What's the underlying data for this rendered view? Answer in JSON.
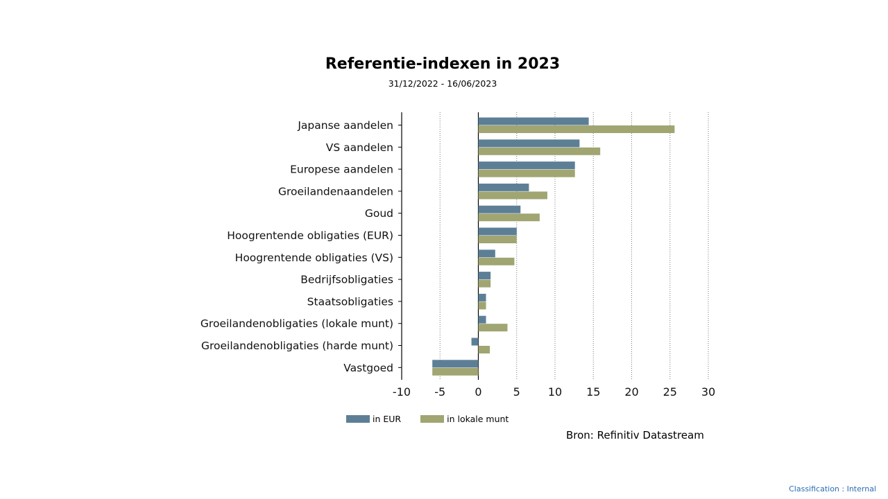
{
  "chart_data": {
    "type": "bar",
    "orientation": "horizontal",
    "title": "Referentie-indexen in 2023",
    "subtitle": "31/12/2022 - 16/06/2023",
    "categories": [
      "Japanse aandelen",
      "VS aandelen",
      "Europese aandelen",
      "Groeilandenaandelen",
      "Goud",
      "Hoogrentende obligaties (EUR)",
      "Hoogrentende obligaties (VS)",
      "Bedrijfsobligaties",
      "Staatsobligaties",
      "Groeilandenobligaties (lokale munt)",
      "Groeilandenobligaties (harde munt)",
      "Vastgoed"
    ],
    "series": [
      {
        "name": "in EUR",
        "color": "#5d7f96",
        "values": [
          14.4,
          13.2,
          12.6,
          6.6,
          5.5,
          5.0,
          2.2,
          1.6,
          1.0,
          1.0,
          -0.9,
          -6.0
        ]
      },
      {
        "name": "in lokale munt",
        "color": "#a0a572",
        "values": [
          25.6,
          15.9,
          12.6,
          9.0,
          8.0,
          5.0,
          4.7,
          1.6,
          1.0,
          3.8,
          1.5,
          -6.0
        ]
      }
    ],
    "xlim": [
      -10,
      30
    ],
    "xticks": [
      "-10",
      "-5",
      "0",
      "5",
      "10",
      "15",
      "20",
      "25",
      "30"
    ],
    "grid": "vertical dotted",
    "legend_position": "bottom"
  },
  "source": "Bron: Refinitiv Datastream",
  "classification": "Classification : Internal"
}
